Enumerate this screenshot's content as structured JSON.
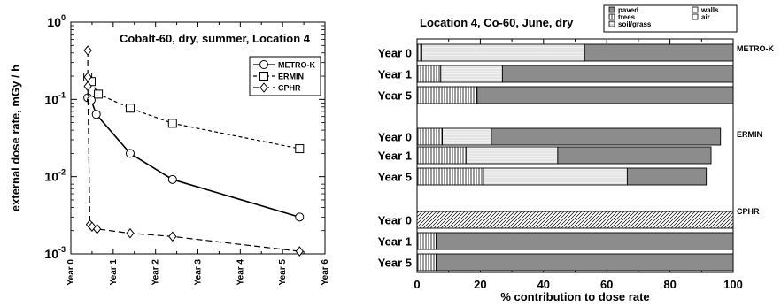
{
  "chart_data": [
    {
      "type": "line",
      "title": "Cobalt-60, dry, summer, Location 4",
      "xlabel": "",
      "ylabel": "external dose rate, mGy / h",
      "xlim": [
        0,
        6
      ],
      "ylim": [
        0.001,
        1
      ],
      "y_scale": "log",
      "x_ticks": [
        "Year 0",
        "Year 1",
        "Year 2",
        "Year 3",
        "Year 4",
        "Year 5",
        "Year 6"
      ],
      "y_ticks": [
        {
          "value": 1,
          "base": "10",
          "exp": "0"
        },
        {
          "value": 0.1,
          "base": "10",
          "exp": "-1"
        },
        {
          "value": 0.01,
          "base": "10",
          "exp": "-2"
        },
        {
          "value": 0.001,
          "base": "10",
          "exp": "-3"
        }
      ],
      "legend_position": "top-right",
      "grid": false,
      "series": [
        {
          "name": "METRO-K",
          "marker": "circle",
          "line": "solid",
          "x": [
            0.4,
            0.48,
            0.6,
            1.4,
            2.4,
            5.4
          ],
          "y": [
            0.105,
            0.098,
            0.064,
            0.02,
            0.0092,
            0.003
          ]
        },
        {
          "name": "ERMIN",
          "marker": "square",
          "line": "dashed-short",
          "x": [
            0.4,
            0.48,
            0.65,
            1.4,
            2.4,
            5.4
          ],
          "y": [
            0.195,
            0.17,
            0.117,
            0.077,
            0.049,
            0.023
          ]
        },
        {
          "name": "CPHR",
          "marker": "diamond",
          "line": "dashed-long",
          "x": [
            0.4,
            0.4,
            0.4,
            0.45,
            0.5,
            0.62,
            1.4,
            2.4,
            5.4
          ],
          "y": [
            0.43,
            0.195,
            0.148,
            0.0024,
            0.00225,
            0.0021,
            0.00185,
            0.00168,
            0.00108
          ]
        }
      ]
    },
    {
      "type": "bar",
      "orientation": "horizontal",
      "stacked": true,
      "title": "Location 4, Co-60, June, dry",
      "xlabel": "% contribution to dose rate",
      "xlim": [
        0,
        100
      ],
      "x_ticks": [
        "0",
        "20",
        "40",
        "60",
        "80",
        "100"
      ],
      "legend_position": "top-right",
      "legend": [
        {
          "key": "paved",
          "name": "paved",
          "fill": "#8c8c8c"
        },
        {
          "key": "walls",
          "name": "walls",
          "fill": "#ffffff"
        },
        {
          "key": "trees",
          "name": "trees",
          "fill": "vertical-hatch"
        },
        {
          "key": "air",
          "name": "air",
          "fill": "#ffffff"
        },
        {
          "key": "soil",
          "name": "soil/grass",
          "fill": "horizontal-hatch"
        }
      ],
      "groups": [
        {
          "name": "METRO-K",
          "bars": [
            {
              "label": "Year 0",
              "segments": [
                {
                  "key": "trees",
                  "value": 1.5
                },
                {
                  "key": "soil",
                  "value": 51.5
                },
                {
                  "key": "paved",
                  "value": 47
                }
              ]
            },
            {
              "label": "Year 1",
              "segments": [
                {
                  "key": "trees",
                  "value": 7.5
                },
                {
                  "key": "soil",
                  "value": 19.5
                },
                {
                  "key": "paved",
                  "value": 73
                }
              ]
            },
            {
              "label": "Year 5",
              "segments": [
                {
                  "key": "trees",
                  "value": 19
                },
                {
                  "key": "paved",
                  "value": 81
                }
              ]
            }
          ]
        },
        {
          "name": "ERMIN",
          "bars": [
            {
              "label": "Year 0",
              "segments": [
                {
                  "key": "trees",
                  "value": 8
                },
                {
                  "key": "soil",
                  "value": 15.5
                },
                {
                  "key": "paved",
                  "value": 72.5
                }
              ]
            },
            {
              "label": "Year 1",
              "segments": [
                {
                  "key": "trees",
                  "value": 15.5
                },
                {
                  "key": "soil",
                  "value": 29
                },
                {
                  "key": "paved",
                  "value": 48.5
                }
              ]
            },
            {
              "label": "Year 5",
              "segments": [
                {
                  "key": "trees",
                  "value": 21
                },
                {
                  "key": "soil",
                  "value": 45.5
                },
                {
                  "key": "paved",
                  "value": 25
                }
              ]
            }
          ]
        },
        {
          "name": "CPHR",
          "bars": [
            {
              "label": "Year 0",
              "segments": [
                {
                  "key": "diag",
                  "value": 100
                }
              ]
            },
            {
              "label": "Year 1",
              "segments": [
                {
                  "key": "trees",
                  "value": 6
                },
                {
                  "key": "paved",
                  "value": 94
                }
              ]
            },
            {
              "label": "Year 5",
              "segments": [
                {
                  "key": "trees",
                  "value": 6
                },
                {
                  "key": "paved",
                  "value": 94
                }
              ]
            }
          ]
        }
      ]
    }
  ]
}
